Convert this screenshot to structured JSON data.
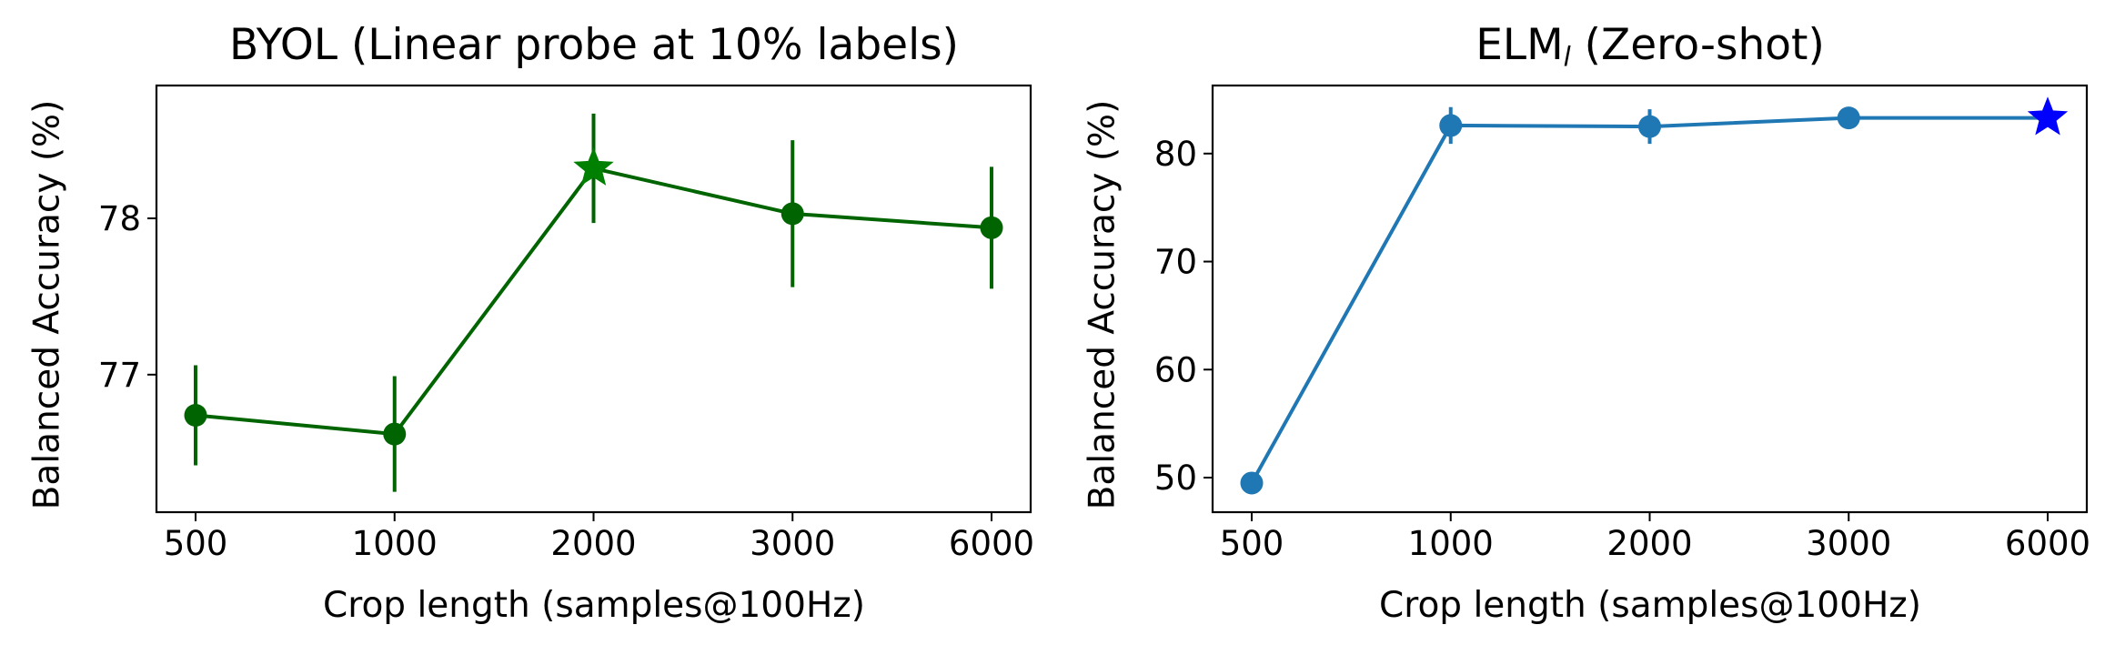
{
  "chart_data": [
    {
      "type": "line",
      "title": "BYOL (Linear probe at 10% labels)",
      "xlabel": "Crop length (samples@100Hz)",
      "ylabel": "Balanced Accuracy (%)",
      "categories": [
        "500",
        "1000",
        "2000",
        "3000",
        "6000"
      ],
      "series": [
        {
          "values": [
            76.74,
            76.62,
            78.32,
            78.03,
            77.94
          ],
          "error": [
            0.32,
            0.37,
            0.35,
            0.47,
            0.39
          ],
          "color": "#006400",
          "best_index": 2,
          "best_color": "#008000"
        }
      ],
      "ylim": [
        76.12,
        78.85
      ],
      "yticks": [
        77,
        78
      ],
      "grid": false
    },
    {
      "type": "line",
      "title_main": "ELM",
      "title_sub": "l",
      "title_rest": " (Zero-shot)",
      "xlabel": "Crop length (samples@100Hz)",
      "ylabel": "Balanced Accuracy (%)",
      "categories": [
        "500",
        "1000",
        "2000",
        "3000",
        "6000"
      ],
      "series": [
        {
          "values": [
            49.5,
            82.6,
            82.5,
            83.3,
            83.3
          ],
          "error": [
            0.4,
            1.7,
            1.6,
            0.5,
            0.3
          ],
          "color": "#1f77b4",
          "best_index": 4,
          "best_color": "#0000ff"
        }
      ],
      "ylim": [
        46.8,
        86.3
      ],
      "yticks": [
        50,
        60,
        70,
        80
      ],
      "grid": false
    }
  ]
}
